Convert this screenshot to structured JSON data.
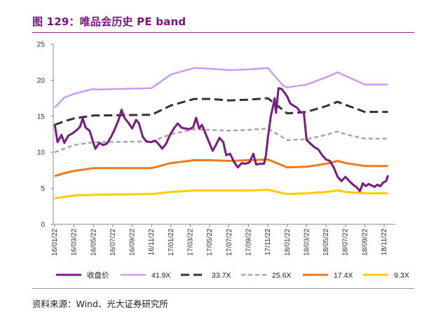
{
  "title": "图 129：唯品会历史 PE band",
  "source": "资料来源：Wind、光大证券研究所",
  "colors": {
    "price": "#7b1a80",
    "pe41": "#c99cf7",
    "pe33": "#333333",
    "pe25": "#a6a6a6",
    "pe17": "#f07a1a",
    "pe9": "#ffcc00"
  },
  "chart_data": {
    "type": "line",
    "title": "唯品会历史 PE band",
    "ylim": [
      0,
      25
    ],
    "yticks": [
      "0",
      "5",
      "10",
      "15",
      "20",
      "25"
    ],
    "xticks": [
      "16/01/22",
      "16/03/22",
      "16/05/22",
      "16/07/22",
      "16/09/22",
      "16/11/22",
      "17/01/22",
      "17/03/22",
      "17/05/22",
      "17/07/22",
      "17/09/22",
      "17/11/22",
      "18/01/22",
      "18/03/22",
      "18/05/22",
      "18/07/22",
      "18/09/22",
      "18/11/22"
    ],
    "series": [
      {
        "name": "收盘价",
        "style": "solid-thick",
        "points": [
          [
            0,
            13.9
          ],
          [
            0.15,
            11.4
          ],
          [
            0.35,
            12.4
          ],
          [
            0.5,
            11.3
          ],
          [
            0.7,
            12.3
          ],
          [
            0.9,
            12.6
          ],
          [
            1.1,
            13.0
          ],
          [
            1.3,
            13.5
          ],
          [
            1.45,
            14.7
          ],
          [
            1.6,
            13.4
          ],
          [
            1.8,
            13.0
          ],
          [
            2.0,
            11.3
          ],
          [
            2.1,
            10.5
          ],
          [
            2.3,
            11.3
          ],
          [
            2.5,
            11.0
          ],
          [
            2.7,
            11.2
          ],
          [
            2.9,
            12.1
          ],
          [
            3.1,
            13.2
          ],
          [
            3.3,
            14.5
          ],
          [
            3.45,
            15.9
          ],
          [
            3.6,
            14.8
          ],
          [
            3.8,
            14.1
          ],
          [
            4.0,
            13.3
          ],
          [
            4.2,
            14.5
          ],
          [
            4.35,
            14.0
          ],
          [
            4.55,
            12.1
          ],
          [
            4.75,
            11.5
          ],
          [
            4.95,
            11.4
          ],
          [
            5.2,
            11.6
          ],
          [
            5.4,
            11.0
          ],
          [
            5.55,
            10.5
          ],
          [
            5.75,
            11.2
          ],
          [
            5.95,
            12.4
          ],
          [
            6.15,
            13.3
          ],
          [
            6.35,
            14.0
          ],
          [
            6.55,
            13.4
          ],
          [
            6.75,
            13.3
          ],
          [
            6.95,
            13.2
          ],
          [
            7.15,
            13.5
          ],
          [
            7.3,
            14.8
          ],
          [
            7.45,
            13.3
          ],
          [
            7.6,
            13.8
          ],
          [
            7.8,
            12.5
          ],
          [
            7.95,
            11.5
          ],
          [
            8.15,
            10.2
          ],
          [
            8.3,
            10.9
          ],
          [
            8.5,
            12.0
          ],
          [
            8.7,
            11.4
          ],
          [
            8.85,
            9.6
          ],
          [
            9.05,
            9.8
          ],
          [
            9.25,
            8.7
          ],
          [
            9.45,
            7.9
          ],
          [
            9.65,
            8.5
          ],
          [
            9.85,
            8.4
          ],
          [
            10.05,
            8.6
          ],
          [
            10.25,
            9.8
          ],
          [
            10.4,
            8.3
          ],
          [
            10.6,
            8.4
          ],
          [
            10.8,
            8.4
          ],
          [
            10.9,
            9.6
          ],
          [
            11.0,
            12.0
          ],
          [
            11.15,
            15.0
          ],
          [
            11.3,
            16.8
          ],
          [
            11.35,
            17.5
          ],
          [
            11.42,
            15.5
          ],
          [
            11.55,
            18.9
          ],
          [
            11.7,
            18.8
          ],
          [
            11.85,
            18.3
          ],
          [
            12.0,
            17.7
          ],
          [
            12.15,
            16.8
          ],
          [
            12.3,
            16.5
          ],
          [
            12.5,
            16.2
          ],
          [
            12.7,
            15.5
          ],
          [
            12.85,
            15.6
          ],
          [
            13.0,
            11.7
          ],
          [
            13.2,
            11.2
          ],
          [
            13.4,
            10.7
          ],
          [
            13.6,
            10.4
          ],
          [
            13.8,
            9.6
          ],
          [
            14.0,
            9.0
          ],
          [
            14.2,
            8.8
          ],
          [
            14.4,
            7.9
          ],
          [
            14.6,
            6.6
          ],
          [
            14.8,
            6.0
          ],
          [
            15.0,
            6.6
          ],
          [
            15.2,
            6.0
          ],
          [
            15.4,
            5.5
          ],
          [
            15.6,
            5.1
          ],
          [
            15.75,
            4.6
          ],
          [
            15.9,
            5.7
          ],
          [
            16.05,
            5.3
          ],
          [
            16.2,
            5.6
          ],
          [
            16.35,
            5.4
          ],
          [
            16.5,
            5.2
          ],
          [
            16.65,
            5.5
          ],
          [
            16.8,
            5.3
          ],
          [
            16.95,
            5.8
          ],
          [
            17.1,
            6.0
          ],
          [
            17.2,
            6.8
          ]
        ]
      },
      {
        "name": "41.9X",
        "style": "solid",
        "points": [
          [
            0,
            16.2
          ],
          [
            0.5,
            17.6
          ],
          [
            1,
            18.1
          ],
          [
            2,
            18.8
          ],
          [
            2.1,
            18.7
          ],
          [
            5,
            18.9
          ],
          [
            6,
            20.8
          ],
          [
            7.2,
            21.7
          ],
          [
            8,
            21.6
          ],
          [
            9,
            21.4
          ],
          [
            10,
            21.5
          ],
          [
            11,
            21.7
          ],
          [
            11.8,
            19.2
          ],
          [
            12,
            19.0
          ],
          [
            13,
            19.4
          ],
          [
            14,
            20.4
          ],
          [
            14.6,
            21.1
          ],
          [
            15,
            20.6
          ],
          [
            16,
            19.4
          ],
          [
            17.2,
            19.4
          ]
        ]
      },
      {
        "name": "33.7X",
        "style": "dashed-thick",
        "points": [
          [
            0,
            13.8
          ],
          [
            0.5,
            14.3
          ],
          [
            1,
            14.7
          ],
          [
            2,
            15.1
          ],
          [
            5,
            15.2
          ],
          [
            6,
            16.5
          ],
          [
            7.2,
            17.4
          ],
          [
            8,
            17.4
          ],
          [
            9,
            17.2
          ],
          [
            10,
            17.3
          ],
          [
            11,
            17.5
          ],
          [
            12,
            15.4
          ],
          [
            13,
            15.6
          ],
          [
            14,
            16.4
          ],
          [
            14.6,
            17.0
          ],
          [
            15,
            16.6
          ],
          [
            16,
            15.6
          ],
          [
            17.2,
            15.6
          ]
        ]
      },
      {
        "name": "25.6X",
        "style": "dashed",
        "points": [
          [
            0,
            10.0
          ],
          [
            0.5,
            10.5
          ],
          [
            1,
            11.0
          ],
          [
            2,
            11.4
          ],
          [
            5,
            11.5
          ],
          [
            6,
            12.5
          ],
          [
            7.2,
            13.2
          ],
          [
            8,
            13.1
          ],
          [
            9,
            13.0
          ],
          [
            10,
            13.1
          ],
          [
            11,
            13.3
          ],
          [
            12,
            11.7
          ],
          [
            13,
            11.8
          ],
          [
            14,
            12.4
          ],
          [
            14.6,
            12.9
          ],
          [
            15,
            12.5
          ],
          [
            16,
            11.9
          ],
          [
            17.2,
            11.9
          ]
        ]
      },
      {
        "name": "17.4X",
        "style": "solid-thick",
        "points": [
          [
            0,
            6.7
          ],
          [
            0.5,
            7.1
          ],
          [
            1,
            7.4
          ],
          [
            2,
            7.8
          ],
          [
            5,
            7.8
          ],
          [
            6,
            8.5
          ],
          [
            7.2,
            8.9
          ],
          [
            8,
            8.9
          ],
          [
            9,
            8.8
          ],
          [
            10,
            8.9
          ],
          [
            11,
            9.0
          ],
          [
            12,
            7.9
          ],
          [
            13,
            8.0
          ],
          [
            14,
            8.4
          ],
          [
            14.6,
            8.8
          ],
          [
            15,
            8.5
          ],
          [
            16,
            8.1
          ],
          [
            17.2,
            8.1
          ]
        ]
      },
      {
        "name": "9.3X",
        "style": "solid-thick",
        "points": [
          [
            0,
            3.6
          ],
          [
            0.5,
            3.8
          ],
          [
            1,
            4.0
          ],
          [
            2,
            4.1
          ],
          [
            5,
            4.2
          ],
          [
            6,
            4.5
          ],
          [
            7.2,
            4.7
          ],
          [
            8,
            4.7
          ],
          [
            9,
            4.7
          ],
          [
            10,
            4.7
          ],
          [
            11,
            4.8
          ],
          [
            12,
            4.2
          ],
          [
            13,
            4.3
          ],
          [
            14,
            4.5
          ],
          [
            14.6,
            4.7
          ],
          [
            15,
            4.5
          ],
          [
            16,
            4.3
          ],
          [
            17.2,
            4.3
          ]
        ]
      }
    ]
  }
}
